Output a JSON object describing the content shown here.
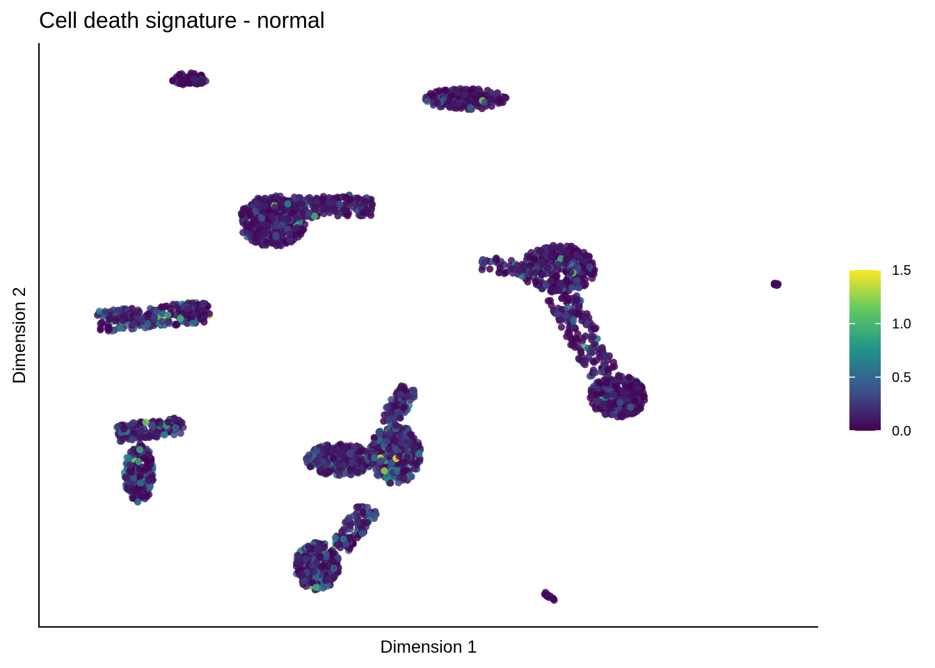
{
  "chart_data": {
    "type": "scatter",
    "title": "Cell death signature - normal",
    "xlabel": "Dimension 1",
    "ylabel": "Dimension 2",
    "x_ticks_shown": false,
    "y_ticks_shown": false,
    "grid": false,
    "color_scale": {
      "name": "viridis",
      "stops": [
        "#440154",
        "#3b528b",
        "#21918c",
        "#5ec962",
        "#fde725"
      ],
      "range": [
        0.0,
        1.5
      ],
      "ticks": [
        {
          "value": 0.0,
          "label": "0.0"
        },
        {
          "value": 0.5,
          "label": "0.5"
        },
        {
          "value": 1.0,
          "label": "1.0"
        },
        {
          "value": 1.5,
          "label": "1.5"
        }
      ],
      "legend_position": "right"
    },
    "point_color_default": "#440154",
    "point_opacity": 0.85,
    "clusters": [
      {
        "id": "c1",
        "shape": "ellipse",
        "cx": 2.03,
        "cy": 9.52,
        "rx": 0.24,
        "ry": 0.12,
        "n": 70,
        "mean_value": 0.08
      },
      {
        "id": "c2",
        "shape": "ellipse",
        "cx": 5.75,
        "cy": 9.15,
        "rx": 0.55,
        "ry": 0.2,
        "n": 170,
        "mean_value": 0.1
      },
      {
        "id": "c3",
        "shape": "ellipse",
        "cx": 3.15,
        "cy": 6.85,
        "rx": 0.45,
        "ry": 0.48,
        "n": 380,
        "mean_value": 0.12
      },
      {
        "id": "c3b",
        "shape": "band",
        "x1": 3.45,
        "y1": 7.1,
        "x2": 4.5,
        "y2": 7.15,
        "w": 0.2,
        "n": 170,
        "mean_value": 0.14
      },
      {
        "id": "c4",
        "shape": "band",
        "x1": 0.8,
        "y1": 4.95,
        "x2": 2.3,
        "y2": 5.15,
        "w": 0.2,
        "n": 230,
        "mean_value": 0.22
      },
      {
        "id": "c5",
        "shape": "ellipse",
        "cx": 7.0,
        "cy": 5.95,
        "rx": 0.5,
        "ry": 0.45,
        "n": 340,
        "mean_value": 0.14
      },
      {
        "id": "c5b",
        "shape": "band",
        "x1": 6.7,
        "y1": 5.9,
        "x2": 5.95,
        "y2": 6.05,
        "w": 0.14,
        "n": 50,
        "mean_value": 0.15
      },
      {
        "id": "c5c",
        "shape": "band",
        "x1": 7.05,
        "y1": 5.45,
        "x2": 7.6,
        "y2": 3.95,
        "w": 0.22,
        "n": 150,
        "mean_value": 0.12
      },
      {
        "id": "c6",
        "shape": "ellipse",
        "cx": 7.8,
        "cy": 3.55,
        "rx": 0.38,
        "ry": 0.4,
        "n": 300,
        "mean_value": 0.1
      },
      {
        "id": "c7",
        "shape": "ellipse",
        "cx": 9.93,
        "cy": 5.65,
        "rx": 0.04,
        "ry": 0.03,
        "n": 10,
        "mean_value": 0.05
      },
      {
        "id": "c8",
        "shape": "band",
        "x1": 1.05,
        "y1": 2.85,
        "x2": 1.95,
        "y2": 3.0,
        "w": 0.16,
        "n": 140,
        "mean_value": 0.22
      },
      {
        "id": "c8b",
        "shape": "ellipse",
        "cx": 1.35,
        "cy": 2.1,
        "rx": 0.2,
        "ry": 0.55,
        "n": 210,
        "mean_value": 0.22
      },
      {
        "id": "c9",
        "shape": "ellipse",
        "cx": 4.05,
        "cy": 2.35,
        "rx": 0.45,
        "ry": 0.3,
        "n": 280,
        "mean_value": 0.22
      },
      {
        "id": "c9b",
        "shape": "ellipse",
        "cx": 4.8,
        "cy": 2.45,
        "rx": 0.35,
        "ry": 0.55,
        "n": 270,
        "mean_value": 0.26
      },
      {
        "id": "c9c",
        "shape": "band",
        "x1": 4.7,
        "y1": 3.05,
        "x2": 5.0,
        "y2": 3.7,
        "w": 0.14,
        "n": 90,
        "mean_value": 0.22
      },
      {
        "id": "c10",
        "shape": "band",
        "x1": 4.45,
        "y1": 1.45,
        "x2": 4.05,
        "y2": 0.7,
        "w": 0.16,
        "n": 110,
        "mean_value": 0.2
      },
      {
        "id": "c10b",
        "shape": "ellipse",
        "cx": 3.75,
        "cy": 0.35,
        "rx": 0.3,
        "ry": 0.45,
        "n": 260,
        "mean_value": 0.2
      },
      {
        "id": "c11",
        "shape": "band",
        "x1": 6.8,
        "y1": -0.15,
        "x2": 6.95,
        "y2": -0.3,
        "w": 0.02,
        "n": 12,
        "mean_value": 0.03
      }
    ]
  }
}
